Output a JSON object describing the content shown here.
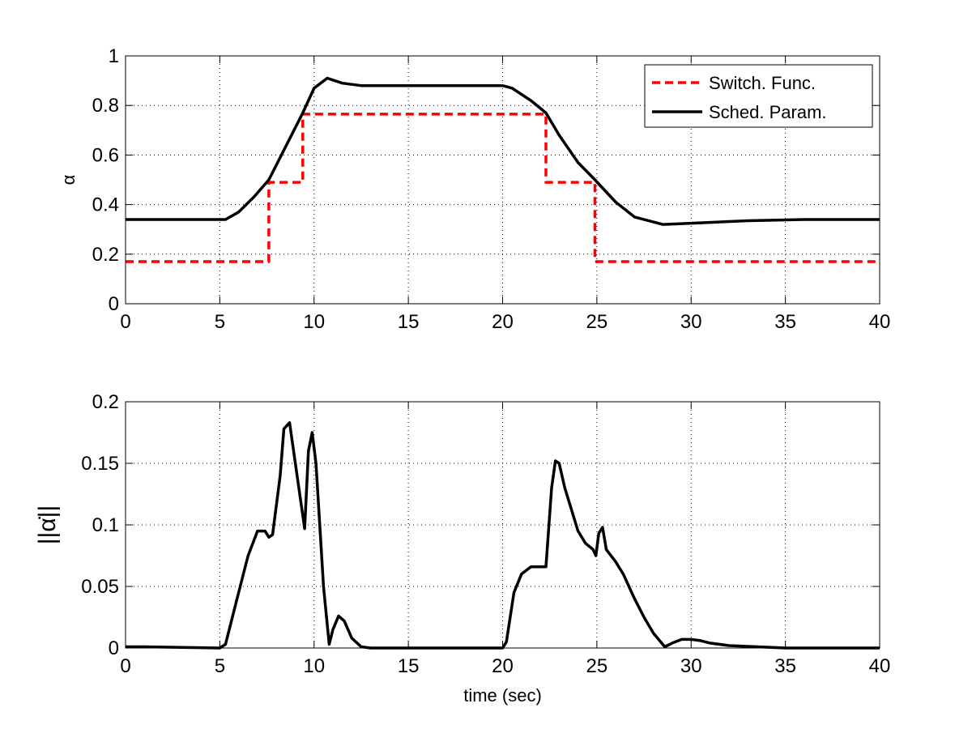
{
  "chart_data": [
    {
      "type": "line",
      "xlabel": "",
      "ylabel": "α",
      "xlim": [
        0,
        40
      ],
      "ylim": [
        0,
        1
      ],
      "xticks": [
        "0",
        "5",
        "10",
        "15",
        "20",
        "25",
        "30",
        "35",
        "40"
      ],
      "yticks": [
        "0",
        "0.2",
        "0.4",
        "0.6",
        "0.8",
        "1"
      ],
      "grid": true,
      "legend_position": "top-right",
      "series": [
        {
          "name": "Switch. Func.",
          "style": "dashed",
          "color": "#ff0000",
          "x": [
            0,
            7.6,
            7.6,
            9.4,
            9.4,
            22.3,
            22.3,
            24.9,
            24.9,
            40
          ],
          "y": [
            0.17,
            0.17,
            0.49,
            0.49,
            0.765,
            0.765,
            0.49,
            0.49,
            0.17,
            0.17
          ]
        },
        {
          "name": "Sched. Param.",
          "style": "solid",
          "color": "#000000",
          "x": [
            0,
            5.3,
            6,
            6.8,
            7.6,
            8.4,
            9.4,
            10,
            10.7,
            11.5,
            12.5,
            15,
            20,
            20.5,
            21.5,
            22.3,
            23,
            24,
            24.9,
            26,
            27,
            28.5,
            30,
            33,
            36,
            40
          ],
          "y": [
            0.34,
            0.34,
            0.37,
            0.43,
            0.5,
            0.62,
            0.77,
            0.87,
            0.91,
            0.89,
            0.88,
            0.88,
            0.88,
            0.87,
            0.82,
            0.77,
            0.68,
            0.57,
            0.5,
            0.41,
            0.35,
            0.32,
            0.325,
            0.335,
            0.34,
            0.34
          ]
        }
      ]
    },
    {
      "type": "line",
      "xlabel": "time (sec)",
      "ylabel": "||α̇||",
      "xlim": [
        0,
        40
      ],
      "ylim": [
        0,
        0.2
      ],
      "xticks": [
        "0",
        "5",
        "10",
        "15",
        "20",
        "25",
        "30",
        "35",
        "40"
      ],
      "yticks": [
        "0",
        "0.05",
        "0.1",
        "0.15",
        "0.2"
      ],
      "grid": true,
      "series": [
        {
          "style": "solid",
          "color": "#000000",
          "x": [
            0,
            1,
            5,
            5.3,
            6,
            6.5,
            7,
            7.4,
            7.6,
            7.8,
            8.2,
            8.4,
            8.7,
            9.1,
            9.5,
            9.7,
            9.9,
            10.1,
            10.5,
            10.8,
            11,
            11.3,
            11.6,
            12,
            12.5,
            13,
            20,
            20.2,
            20.6,
            21,
            21.5,
            22,
            22.3,
            22.6,
            22.8,
            23,
            23.3,
            23.7,
            24,
            24.4,
            24.8,
            24.95,
            25.1,
            25.3,
            25.5,
            26,
            26.4,
            27,
            27.5,
            28,
            28.6,
            29,
            29.5,
            30,
            30.5,
            31,
            32,
            33.5,
            35,
            40
          ],
          "y": [
            0.001,
            0.001,
            0,
            0.003,
            0.045,
            0.075,
            0.095,
            0.095,
            0.09,
            0.092,
            0.14,
            0.178,
            0.183,
            0.14,
            0.097,
            0.16,
            0.175,
            0.15,
            0.05,
            0.003,
            0.015,
            0.026,
            0.022,
            0.008,
            0.001,
            0,
            0,
            0.005,
            0.045,
            0.06,
            0.066,
            0.066,
            0.066,
            0.13,
            0.152,
            0.15,
            0.13,
            0.11,
            0.095,
            0.085,
            0.08,
            0.075,
            0.093,
            0.098,
            0.08,
            0.07,
            0.06,
            0.04,
            0.025,
            0.012,
            0.001,
            0.004,
            0.007,
            0.007,
            0.006,
            0.004,
            0.002,
            0.001,
            0,
            0
          ]
        }
      ]
    }
  ]
}
